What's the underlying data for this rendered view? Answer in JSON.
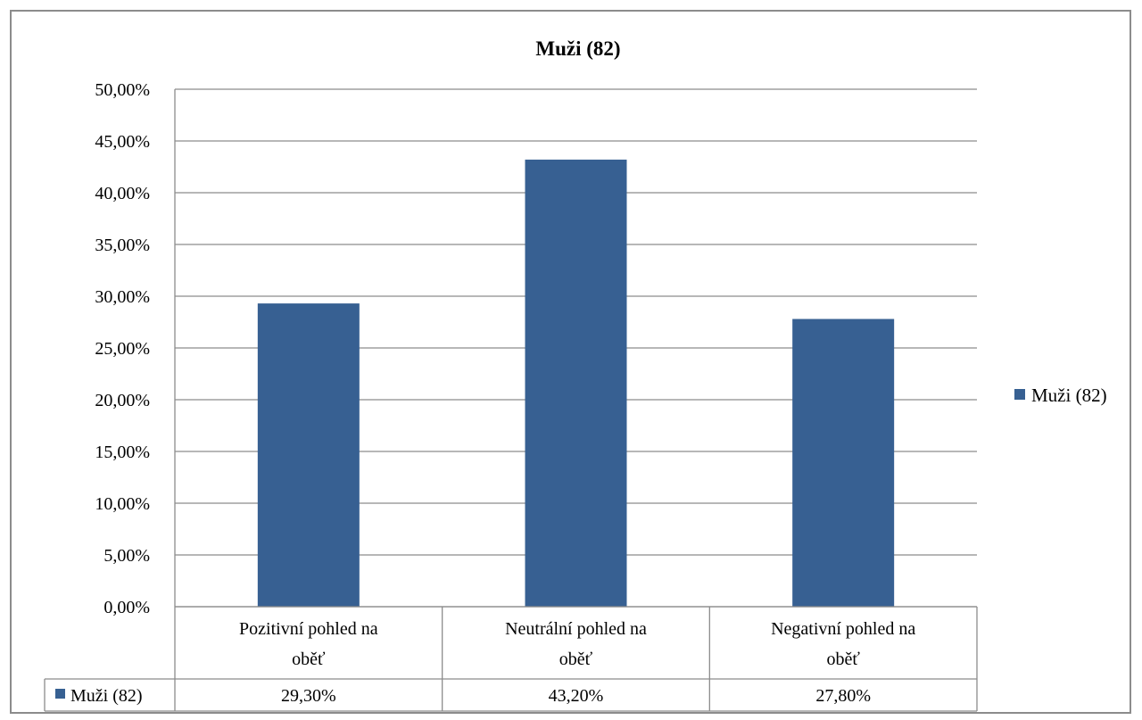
{
  "chart_data": {
    "type": "bar",
    "title": "Muži (82)",
    "categories": [
      "Pozitivní pohled na oběť",
      "Neutrální pohled na oběť",
      "Negativní pohled na oběť"
    ],
    "category_lines": [
      [
        "Pozitivní pohled na",
        "oběť"
      ],
      [
        "Neutrální pohled na",
        "oběť"
      ],
      [
        "Negativní pohled na",
        "oběť"
      ]
    ],
    "series": [
      {
        "name": "Muži (82)",
        "values": [
          29.3,
          43.2,
          27.8
        ],
        "labels": [
          "29,30%",
          "43,20%",
          "27,80%"
        ],
        "color": "#376092"
      }
    ],
    "ylim": [
      0,
      50
    ],
    "yticks": [
      "0,00%",
      "5,00%",
      "10,00%",
      "15,00%",
      "20,00%",
      "25,00%",
      "30,00%",
      "35,00%",
      "40,00%",
      "45,00%",
      "50,00%"
    ],
    "ytick_values": [
      0,
      5,
      10,
      15,
      20,
      25,
      30,
      35,
      40,
      45,
      50
    ],
    "grid": true,
    "legend": "right",
    "data_table": true,
    "colors": {
      "bar": "#376092",
      "grid": "#8c8c8c",
      "frame": "#8c8c8c"
    }
  }
}
